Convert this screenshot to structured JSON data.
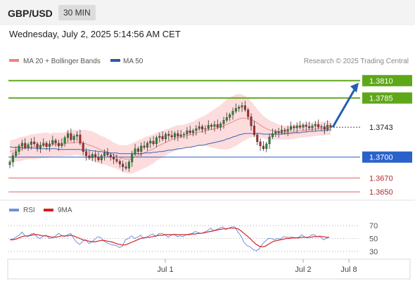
{
  "header": {
    "symbol": "GBP/USD",
    "timeframe": "30 MIN",
    "datetime": "Wednesday, July 2, 2025 5:14:56 AM CET"
  },
  "legend": {
    "bollinger": "MA 20 + Bollinger Bands",
    "ma50": "MA 50",
    "source": "Research © 2025 Trading Central",
    "rsi": "RSI",
    "rsi_ma": "9MA"
  },
  "colors": {
    "up": "#2a8c32",
    "down": "#b3282c",
    "target": "#5ea719",
    "pivot": "#2b62c9",
    "support": "#e06060",
    "band_fill": "#fcdcdc",
    "ma20": "#e78c8c",
    "ma50": "#3a63b4",
    "rsi": "#7090e0",
    "rsi_ma": "#d42020",
    "arrow": "#245fb1"
  },
  "chart_data": [
    {
      "type": "candlestick",
      "ylim": [
        1.364,
        1.383
      ],
      "levels": [
        {
          "label": "1.3810",
          "value": 1.381,
          "role": "target"
        },
        {
          "label": "1.3785",
          "value": 1.3785,
          "role": "target"
        },
        {
          "label": "1.3743",
          "value": 1.3743,
          "role": "last"
        },
        {
          "label": "1.3700",
          "value": 1.37,
          "role": "pivot"
        },
        {
          "label": "1.3670",
          "value": 1.367,
          "role": "support"
        },
        {
          "label": "1.3650",
          "value": 1.365,
          "role": "support"
        }
      ],
      "x_ticks": [
        "Jul 1",
        "Jul 2",
        "Jul 8"
      ],
      "closes": [
        1.3693,
        1.3702,
        1.3708,
        1.3716,
        1.372,
        1.3714,
        1.3718,
        1.3722,
        1.3719,
        1.3713,
        1.3717,
        1.372,
        1.3715,
        1.3719,
        1.3724,
        1.372,
        1.3716,
        1.372,
        1.3728,
        1.3734,
        1.3725,
        1.373,
        1.3732,
        1.372,
        1.3708,
        1.3702,
        1.3699,
        1.3704,
        1.37,
        1.3696,
        1.3702,
        1.3706,
        1.3703,
        1.37,
        1.3697,
        1.3694,
        1.369,
        1.3686,
        1.3684,
        1.3693,
        1.3704,
        1.3712,
        1.3708,
        1.3716,
        1.3714,
        1.372,
        1.3723,
        1.3719,
        1.3728,
        1.373,
        1.3726,
        1.3733,
        1.3731,
        1.3729,
        1.3734,
        1.373,
        1.3732,
        1.3733,
        1.3738,
        1.3735,
        1.3738,
        1.3741,
        1.3744,
        1.374,
        1.3741,
        1.3746,
        1.3744,
        1.3747,
        1.3743,
        1.3748,
        1.3753,
        1.3757,
        1.3761,
        1.3766,
        1.377,
        1.3772,
        1.3774,
        1.3768,
        1.3758,
        1.3745,
        1.3732,
        1.3722,
        1.3716,
        1.3712,
        1.3719,
        1.3729,
        1.3734,
        1.3737,
        1.3735,
        1.3739,
        1.3737,
        1.374,
        1.3744,
        1.3742,
        1.3745,
        1.3743,
        1.3746,
        1.3744,
        1.3742,
        1.3745,
        1.3747,
        1.3743,
        1.3744,
        1.374,
        1.3746,
        1.3743
      ],
      "ma20": [
        1.3708,
        1.3709,
        1.371,
        1.3711,
        1.3712,
        1.3713,
        1.3714,
        1.3715,
        1.3715,
        1.3716,
        1.3716,
        1.3717,
        1.3717,
        1.3717,
        1.3718,
        1.3718,
        1.3718,
        1.3718,
        1.3719,
        1.372,
        1.372,
        1.3721,
        1.3721,
        1.3721,
        1.372,
        1.3719,
        1.3717,
        1.3716,
        1.3714,
        1.3712,
        1.371,
        1.3709,
        1.3707,
        1.3705,
        1.3703,
        1.3701,
        1.3699,
        1.3698,
        1.3697,
        1.3697,
        1.3698,
        1.37,
        1.3702,
        1.3704,
        1.3706,
        1.3708,
        1.371,
        1.3712,
        1.3715,
        1.3717,
        1.3719,
        1.3721,
        1.3723,
        1.3725,
        1.3727,
        1.3728,
        1.3729,
        1.373,
        1.3731,
        1.3732,
        1.3733,
        1.3735,
        1.3736,
        1.3737,
        1.3738,
        1.3739,
        1.374,
        1.3741,
        1.3742,
        1.3743,
        1.3745,
        1.3747,
        1.3749,
        1.3751,
        1.3753,
        1.3755,
        1.3756,
        1.3756,
        1.3756,
        1.3754,
        1.3752,
        1.3749,
        1.3746,
        1.3743,
        1.3741,
        1.3739,
        1.3738,
        1.3737,
        1.3736,
        1.3735,
        1.3735,
        1.3735,
        1.3736,
        1.3736,
        1.3737,
        1.3738,
        1.3738,
        1.3739,
        1.3739,
        1.374,
        1.374,
        1.3741,
        1.3741,
        1.3741,
        1.3742,
        1.3742
      ],
      "ma50": [
        1.3715,
        1.3714,
        1.3714,
        1.3714,
        1.3714,
        1.3713,
        1.3713,
        1.3713,
        1.3713,
        1.3712,
        1.3712,
        1.3712,
        1.3712,
        1.3712,
        1.3712,
        1.3712,
        1.3711,
        1.3711,
        1.3711,
        1.3711,
        1.3711,
        1.3711,
        1.3711,
        1.3711,
        1.371,
        1.371,
        1.371,
        1.3709,
        1.3709,
        1.3708,
        1.3708,
        1.3707,
        1.3707,
        1.3706,
        1.3706,
        1.3706,
        1.3705,
        1.3705,
        1.3705,
        1.3705,
        1.3705,
        1.3705,
        1.3705,
        1.3705,
        1.3706,
        1.3706,
        1.3706,
        1.3707,
        1.3707,
        1.3708,
        1.3708,
        1.3709,
        1.371,
        1.371,
        1.3711,
        1.3712,
        1.3712,
        1.3713,
        1.3714,
        1.3714,
        1.3715,
        1.3716,
        1.3717,
        1.3717,
        1.3718,
        1.3719,
        1.372,
        1.3721,
        1.3722,
        1.3723,
        1.3724,
        1.3726,
        1.3727,
        1.3729,
        1.373,
        1.3732,
        1.3733,
        1.3734,
        1.3734,
        1.3734,
        1.3734,
        1.3734,
        1.3734,
        1.3733,
        1.3733,
        1.3733,
        1.3733,
        1.3733,
        1.3733,
        1.3733,
        1.3734,
        1.3734,
        1.3734,
        1.3735,
        1.3735,
        1.3735,
        1.3736,
        1.3736,
        1.3737,
        1.3737,
        1.3737,
        1.3738,
        1.3738,
        1.3738,
        1.3739,
        1.3739
      ],
      "band_width": [
        0.0016,
        0.0016,
        0.0016,
        0.0017,
        0.0017,
        0.0017,
        0.0017,
        0.0018,
        0.0018,
        0.0018,
        0.0018,
        0.0018,
        0.0018,
        0.0017,
        0.0017,
        0.0017,
        0.0017,
        0.0017,
        0.0017,
        0.0018,
        0.0018,
        0.0018,
        0.0018,
        0.0019,
        0.0019,
        0.002,
        0.0021,
        0.0021,
        0.0021,
        0.0021,
        0.002,
        0.002,
        0.0019,
        0.0019,
        0.0018,
        0.0018,
        0.0018,
        0.0019,
        0.002,
        0.0021,
        0.0022,
        0.0022,
        0.0022,
        0.0022,
        0.0022,
        0.0022,
        0.0021,
        0.0021,
        0.002,
        0.002,
        0.0019,
        0.0019,
        0.0018,
        0.0018,
        0.0018,
        0.0018,
        0.0017,
        0.0017,
        0.0017,
        0.0018,
        0.0018,
        0.0019,
        0.002,
        0.0021,
        0.0022,
        0.0024,
        0.0026,
        0.0028,
        0.003,
        0.0032,
        0.0034,
        0.0036,
        0.0037,
        0.0037,
        0.0037,
        0.0036,
        0.0034,
        0.0032,
        0.0029,
        0.0026,
        0.0023,
        0.002,
        0.0018,
        0.0016,
        0.0015,
        0.0014,
        0.0013,
        0.0012,
        0.0011,
        0.001,
        0.001,
        0.001,
        0.001,
        0.001,
        0.001,
        0.001,
        0.001,
        0.001,
        0.001,
        0.001,
        0.001,
        0.001,
        0.001,
        0.001,
        0.001,
        0.001
      ]
    },
    {
      "type": "line",
      "ylim": [
        20,
        80
      ],
      "y_ticks": [
        "70",
        "50",
        "30"
      ],
      "series": [
        {
          "name": "RSI",
          "values": [
            48,
            49,
            52,
            55,
            60,
            54,
            53,
            57,
            58,
            52,
            50,
            54,
            55,
            50,
            51,
            54,
            58,
            55,
            53,
            56,
            58,
            50,
            44,
            41,
            46,
            48,
            42,
            45,
            49,
            53,
            51,
            46,
            43,
            41,
            40,
            39,
            36,
            38,
            48,
            50,
            54,
            50,
            52,
            55,
            50,
            52,
            55,
            57,
            53,
            58,
            58,
            56,
            52,
            55,
            57,
            53,
            54,
            53,
            56,
            57,
            58,
            61,
            59,
            58,
            60,
            62,
            66,
            62,
            64,
            66,
            68,
            64,
            66,
            68,
            68,
            60,
            54,
            44,
            39,
            37,
            33,
            31,
            34,
            41,
            46,
            50,
            50,
            48,
            50,
            49,
            53,
            52,
            52,
            52,
            51,
            52,
            56,
            52,
            51,
            55,
            56,
            53,
            54,
            48,
            50,
            52
          ]
        },
        {
          "name": "9MA",
          "values": [
            48,
            48,
            49,
            51,
            53,
            54,
            54,
            55,
            56,
            56,
            55,
            54,
            54,
            53,
            52,
            52,
            53,
            54,
            54,
            54,
            55,
            54,
            52,
            50,
            48,
            47,
            46,
            45,
            45,
            46,
            47,
            47,
            46,
            45,
            44,
            42,
            41,
            40,
            40,
            42,
            44,
            46,
            48,
            50,
            51,
            52,
            52,
            53,
            54,
            55,
            55,
            56,
            56,
            56,
            56,
            56,
            56,
            56,
            56,
            56,
            57,
            57,
            58,
            58,
            59,
            60,
            61,
            62,
            63,
            64,
            65,
            65,
            66,
            66,
            66,
            65,
            62,
            58,
            54,
            50,
            45,
            41,
            38,
            37,
            38,
            41,
            44,
            46,
            47,
            48,
            49,
            50,
            50,
            51,
            51,
            51,
            52,
            52,
            52,
            52,
            53,
            53,
            53,
            53,
            52,
            52
          ]
        }
      ]
    }
  ]
}
